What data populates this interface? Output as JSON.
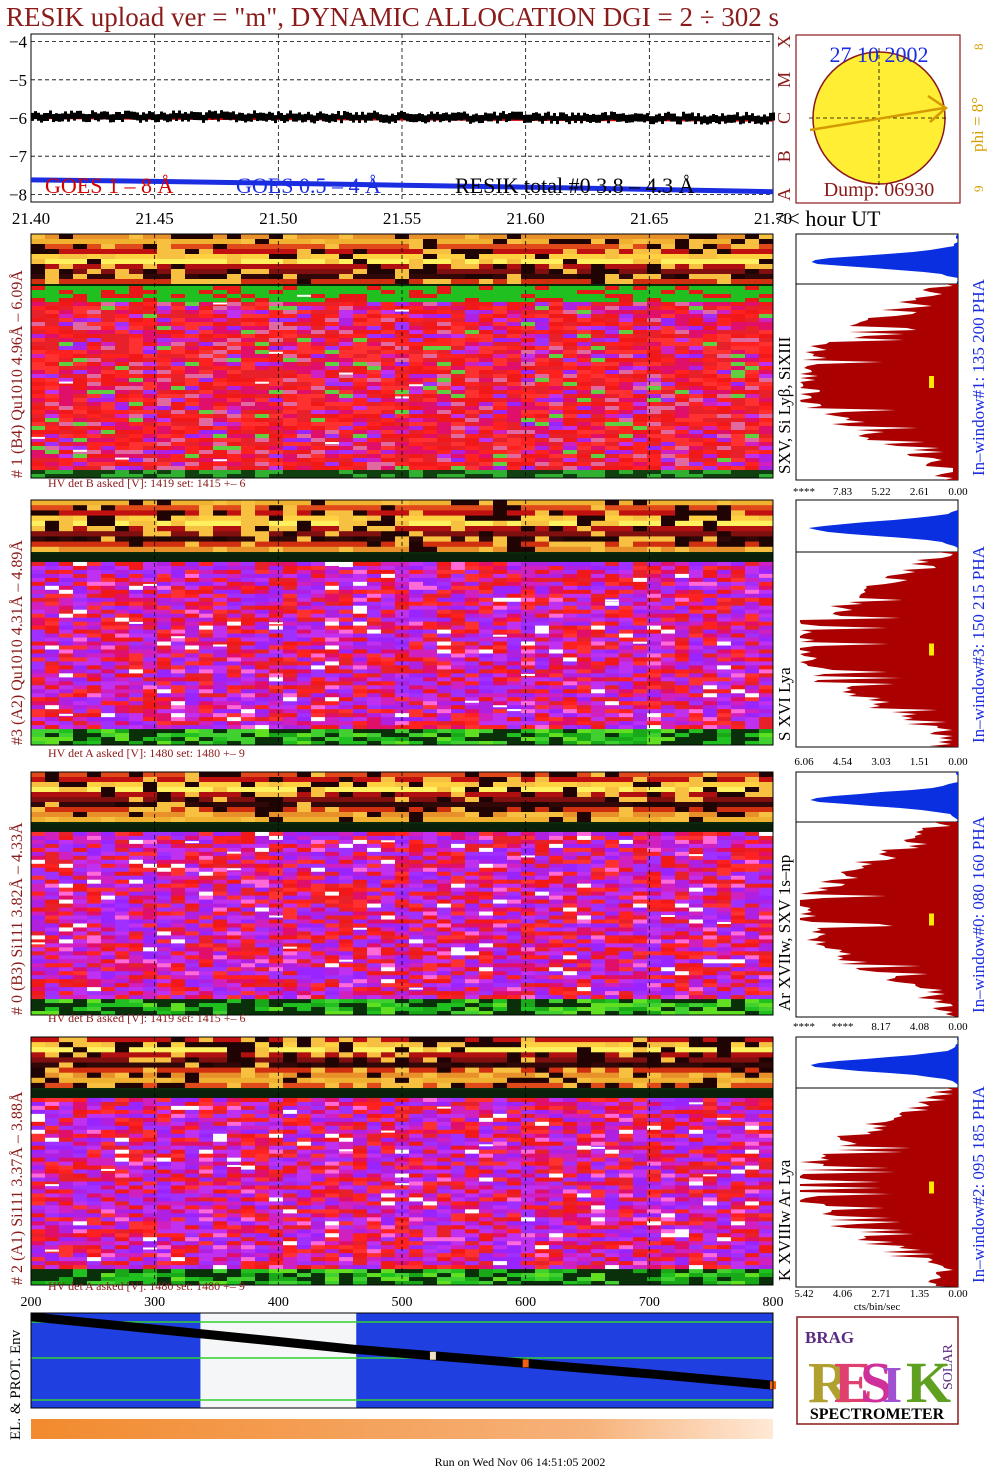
{
  "title": "RESIK upload ver = \"m\", DYNAMIC ALLOCATION  DGI =   2 ÷ 302 s",
  "colors": {
    "title": "#8b1a1a",
    "goes_long": "#d40000",
    "goes_short": "#1a2de0",
    "detector_label": "#8b1a1a",
    "window_label": "#1a2de0",
    "pha_blue": "#0a2fe0",
    "pha_red": "#aa0000",
    "marker": "#ffe600",
    "sun": "#ffee33",
    "phi": "#d4a000"
  },
  "top_panel": {
    "legend_goes_long": "GOES 1 – 8 Å",
    "legend_goes_short": "GOES 0.5 – 4 Å",
    "legend_resik": "RESIK total #0  3.8 – 4.3 Å",
    "flare_classes": [
      "A",
      "B",
      "C",
      "M",
      "X"
    ]
  },
  "sun_box": {
    "date": "27 10 2002",
    "dump": "Dump: 06930",
    "phi_label": "phi =  8°",
    "phi_extra_top": "8",
    "phi_extra_bottom": "9"
  },
  "time_axis_suffix": "<< hour UT",
  "detectors": [
    {
      "label": "# 1 (B4) Qu1010 4.96Å – 6.09Å",
      "lines": "SXV, Si Lyβ, SiXIII",
      "hv": "HV det B asked [V]:  1419 set:  1415 +–   6",
      "window": "In–window#1:  135 200 PHA",
      "pha_ticks": [
        "****",
        "7.83",
        "5.22",
        "2.61",
        "0.00"
      ]
    },
    {
      "label": "#3 (A2) Qu1010  4.31Å – 4.89Å",
      "lines": "S XVI Lya",
      "hv": "HV det A asked [V]:  1480 set:  1480 +–   9",
      "window": "In–window#3:  150 215 PHA",
      "pha_ticks": [
        "6.06",
        "4.54",
        "3.03",
        "1.51",
        "0.00"
      ]
    },
    {
      "label": "# 0 (B3) Si111  3.82Å – 4.33Å",
      "lines": "Ar XVIIw,  SXV 1s–np",
      "hv": "HV det B asked [V]:  1419 set:  1415 +–   6",
      "window": "In–window#0:  080 160 PHA",
      "pha_ticks": [
        "****",
        "****",
        "8.17",
        "4.08",
        "0.00"
      ]
    },
    {
      "label": "# 2 (A1) Si111  3.37Å – 3.88Å",
      "lines": "K XVIIIw  Ar Lya",
      "hv": "HV det A asked [V]:  1480 set:  1480 +–   9",
      "window": "In–window#2:  095 185 PHA",
      "pha_ticks": [
        "5.42",
        "4.06",
        "2.71",
        "1.35",
        "0.00"
      ],
      "pha_axis_label": "cts/bin/sec"
    }
  ],
  "bottom_panel": {
    "label": "EL. & PROT. Env",
    "x_ticks": [
      "200",
      "300",
      "400",
      "500",
      "600",
      "700",
      "800"
    ]
  },
  "logo": {
    "letters": [
      "R",
      "E",
      "S",
      "I",
      "K"
    ],
    "small_top": "BRAG",
    "small_right": "SOLAR",
    "subtitle": "SPECTROMETER"
  },
  "footer": "Run on Wed Nov 06 14:51:05 2002",
  "chart_data": [
    {
      "type": "line",
      "title": "RESIK upload ver = \"m\", DYNAMIC ALLOCATION  DGI =   2 ÷ 302 s",
      "xlabel": "hour UT",
      "x_ticks": [
        "21.40",
        "21.45",
        "21.50",
        "21.55",
        "21.60",
        "21.65",
        "21.70"
      ],
      "xlim": [
        21.4,
        21.7
      ],
      "ylim": [
        -8.2,
        -3.8
      ],
      "y_ticks": [
        -4,
        -5,
        -6,
        -7,
        -8
      ],
      "grid": true,
      "series": [
        {
          "name": "GOES 1 – 8 Å",
          "x": [
            21.4,
            21.45,
            21.5,
            21.55,
            21.6,
            21.65,
            21.7
          ],
          "y": [
            -6.0,
            -6.02,
            -6.03,
            -6.04,
            -6.05,
            -6.06,
            -6.07
          ]
        },
        {
          "name": "GOES 0.5 – 4 Å",
          "x": [
            21.4,
            21.45,
            21.5,
            21.55,
            21.6,
            21.65,
            21.7
          ],
          "y": [
            -7.62,
            -7.66,
            -7.71,
            -7.76,
            -7.81,
            -7.87,
            -7.93
          ]
        },
        {
          "name": "RESIK total #0  3.8 – 4.3 Å",
          "x": [
            21.4,
            21.45,
            21.5,
            21.55,
            21.6,
            21.65,
            21.7
          ],
          "y": [
            -5.95,
            -5.97,
            -5.98,
            -5.99,
            -6.0,
            -6.0,
            -6.01
          ]
        }
      ]
    },
    {
      "type": "line",
      "xlim": [
        200,
        800
      ],
      "x_ticks": [
        200,
        300,
        400,
        500,
        600,
        700,
        800
      ],
      "series": [
        {
          "x": [
            200,
            300,
            400,
            460,
            525,
            600,
            700,
            800
          ],
          "y": [
            0.96,
            0.83,
            0.7,
            0.62,
            0.55,
            0.47,
            0.36,
            0.24
          ]
        }
      ]
    }
  ]
}
